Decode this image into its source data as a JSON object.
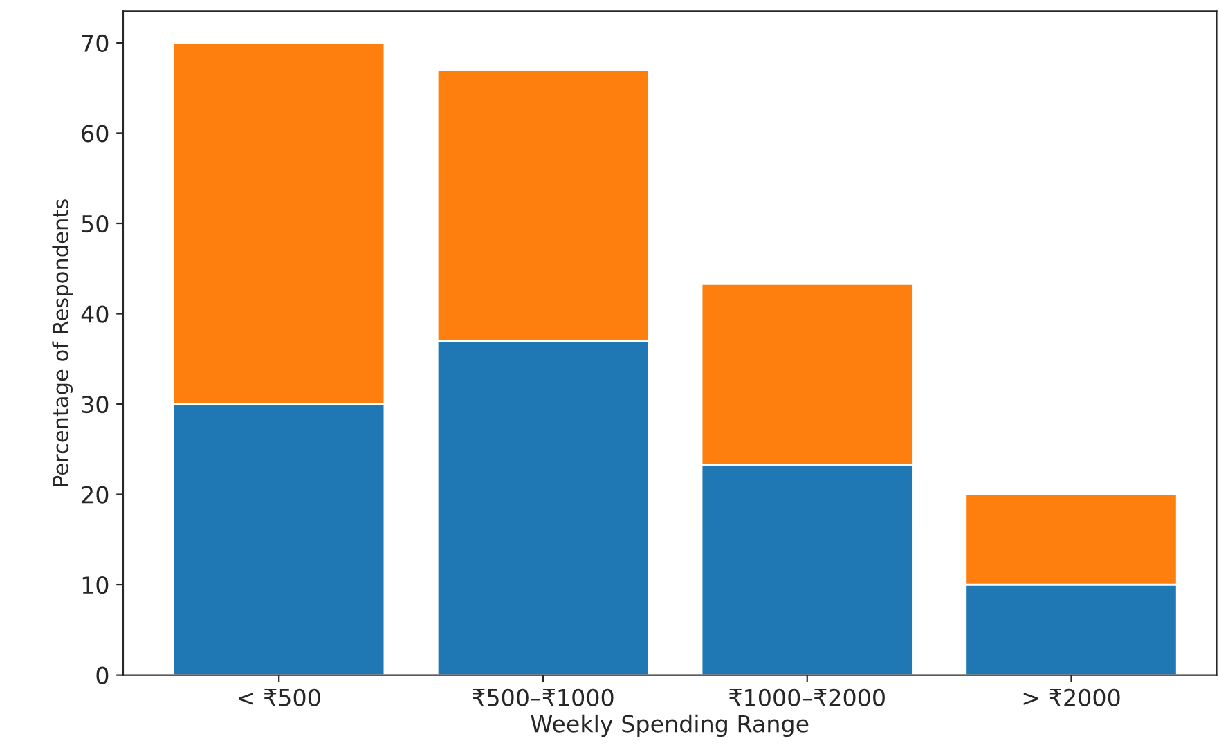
{
  "chart_data": {
    "type": "bar",
    "stacked": true,
    "categories": [
      "< ₹500",
      "₹500–₹1000",
      "₹1000–₹2000",
      "> ₹2000"
    ],
    "series": [
      {
        "color": "#1f77b4",
        "values": [
          30,
          37,
          23.3,
          10
        ]
      },
      {
        "color": "#ff7f0e",
        "values": [
          40,
          30,
          20,
          10
        ]
      }
    ],
    "xlabel": "Weekly Spending Range",
    "ylabel": "Percentage of Respondents",
    "ylim": [
      0,
      73.5
    ],
    "yticks": [
      0,
      10,
      20,
      30,
      40,
      50,
      60,
      70
    ],
    "grid": false,
    "legend": false
  }
}
